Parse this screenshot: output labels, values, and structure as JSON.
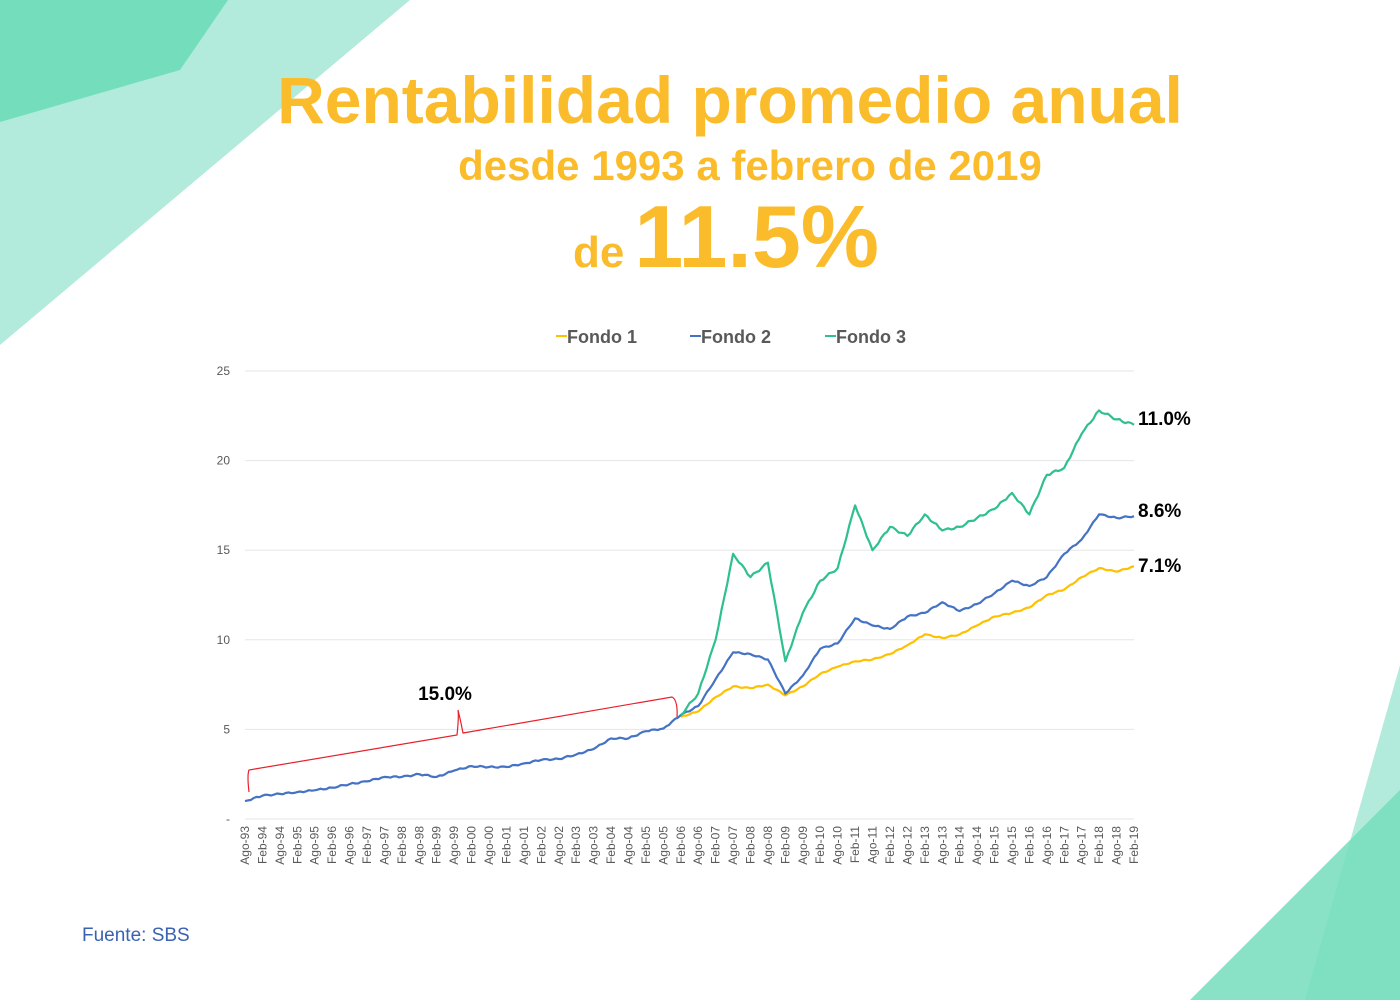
{
  "header": {
    "title": "Rentabilidad promedio anual",
    "subtitle": "desde 1993 a febrero de 2019",
    "prefix": "de",
    "headline_value": "11.5%"
  },
  "source": "Fuente: SBS",
  "colors": {
    "title": "#FBBC2C",
    "fondo1": "#FFC000",
    "fondo2": "#4472C4",
    "fondo3": "#2EC08F",
    "annotation": "#E8202A",
    "source": "#3A62B4"
  },
  "chart_data": {
    "type": "line",
    "title": "",
    "xlabel": "",
    "ylabel": "",
    "ylim": [
      0,
      25
    ],
    "yticks": [
      0,
      5,
      10,
      15,
      20,
      25
    ],
    "ytick_labels": [
      "-",
      "5",
      "10",
      "15",
      "20",
      "25"
    ],
    "grid": true,
    "legend": "top-center",
    "x": [
      "Ago-93",
      "Feb-94",
      "Ago-94",
      "Feb-95",
      "Ago-95",
      "Feb-96",
      "Ago-96",
      "Feb-97",
      "Ago-97",
      "Feb-98",
      "Ago-98",
      "Feb-99",
      "Ago-99",
      "Feb-00",
      "Ago-00",
      "Feb-01",
      "Ago-01",
      "Feb-02",
      "Ago-02",
      "Feb-03",
      "Ago-03",
      "Feb-04",
      "Ago-04",
      "Feb-05",
      "Ago-05",
      "Feb-06",
      "Ago-06",
      "Feb-07",
      "Ago-07",
      "Feb-08",
      "Ago-08",
      "Feb-09",
      "Ago-09",
      "Feb-10",
      "Ago-10",
      "Feb-11",
      "Ago-11",
      "Feb-12",
      "Ago-12",
      "Feb-13",
      "Ago-13",
      "Feb-14",
      "Ago-14",
      "Feb-15",
      "Ago-15",
      "Feb-16",
      "Ago-16",
      "Feb-17",
      "Ago-17",
      "Feb-18",
      "Ago-18",
      "Feb-19"
    ],
    "series": [
      {
        "name": "Fondo 1",
        "color": "#FFC000",
        "end_label": "7.1%",
        "values": [
          null,
          null,
          null,
          null,
          null,
          null,
          null,
          null,
          null,
          null,
          null,
          null,
          null,
          null,
          null,
          null,
          null,
          null,
          null,
          null,
          null,
          null,
          null,
          null,
          null,
          5.7,
          6.0,
          6.8,
          7.4,
          7.3,
          7.5,
          6.9,
          7.4,
          8.1,
          8.5,
          8.8,
          8.9,
          9.2,
          9.7,
          10.3,
          10.1,
          10.3,
          10.8,
          11.3,
          11.5,
          11.8,
          12.5,
          12.8,
          13.5,
          14.0,
          13.8,
          14.1
        ]
      },
      {
        "name": "Fondo 2",
        "color": "#4472C4",
        "end_label": "8.6%",
        "values": [
          1.0,
          1.3,
          1.4,
          1.5,
          1.6,
          1.75,
          1.95,
          2.1,
          2.35,
          2.35,
          2.5,
          2.35,
          2.7,
          2.95,
          2.9,
          2.9,
          3.1,
          3.3,
          3.35,
          3.6,
          3.9,
          4.5,
          4.5,
          4.9,
          5.05,
          5.8,
          6.3,
          7.8,
          9.3,
          9.2,
          8.9,
          7.0,
          8.0,
          9.5,
          9.8,
          11.2,
          10.8,
          10.6,
          11.3,
          11.5,
          12.1,
          11.6,
          12.0,
          12.6,
          13.3,
          13.0,
          13.5,
          14.8,
          15.6,
          17.0,
          16.8,
          16.9
        ]
      },
      {
        "name": "Fondo 3",
        "color": "#2EC08F",
        "end_label": "11.0%",
        "values": [
          null,
          null,
          null,
          null,
          null,
          null,
          null,
          null,
          null,
          null,
          null,
          null,
          null,
          null,
          null,
          null,
          null,
          null,
          null,
          null,
          null,
          null,
          null,
          null,
          null,
          5.8,
          7.0,
          10.0,
          14.8,
          13.5,
          14.3,
          8.8,
          11.5,
          13.3,
          14.0,
          17.5,
          15.0,
          16.3,
          15.8,
          17.0,
          16.1,
          16.3,
          16.8,
          17.3,
          18.2,
          17.0,
          19.2,
          19.6,
          21.5,
          22.8,
          22.3,
          22.0
        ]
      }
    ],
    "annotations": [
      {
        "text": "15.0%",
        "from": "Ago-93",
        "to": "Feb-06"
      }
    ]
  }
}
